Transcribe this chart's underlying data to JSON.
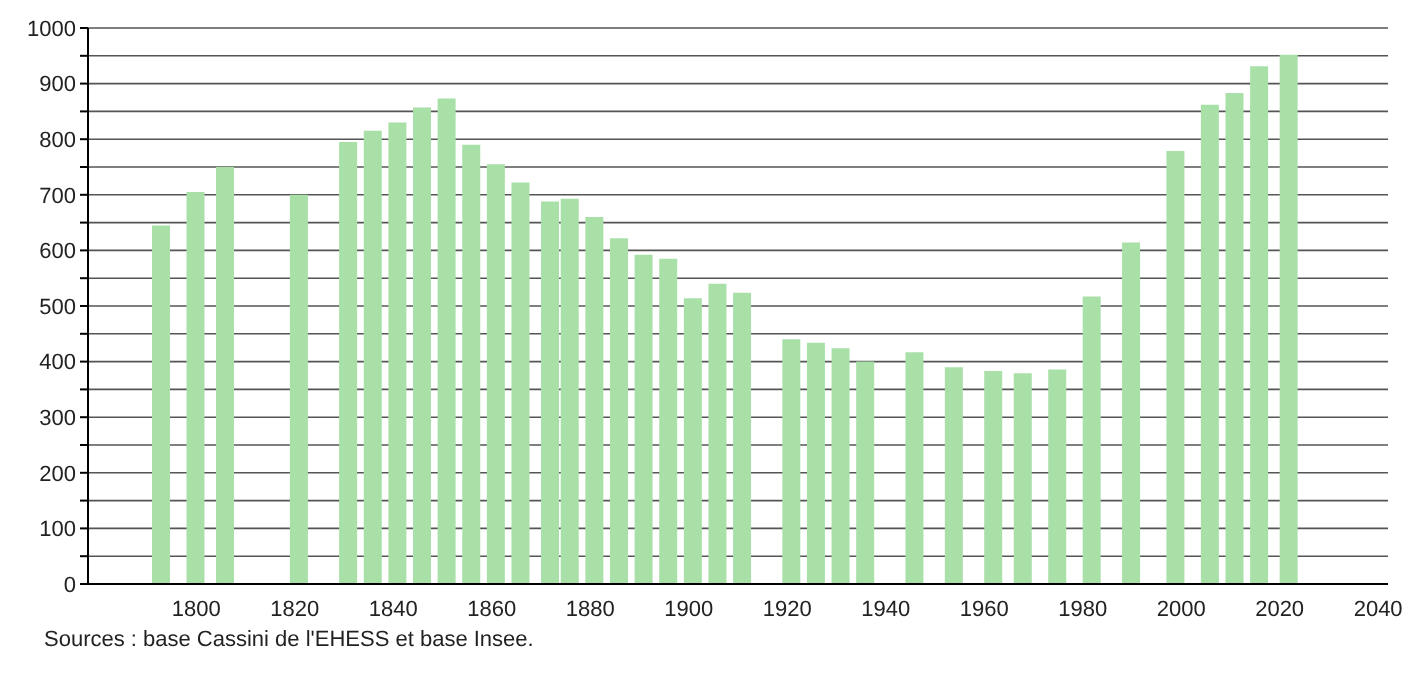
{
  "chart_data": {
    "type": "bar",
    "x": [
      1793,
      1800,
      1806,
      1821,
      1831,
      1836,
      1841,
      1846,
      1851,
      1856,
      1861,
      1866,
      1872,
      1876,
      1881,
      1886,
      1891,
      1896,
      1901,
      1906,
      1911,
      1921,
      1926,
      1931,
      1936,
      1946,
      1954,
      1962,
      1968,
      1975,
      1982,
      1990,
      1999,
      2006,
      2011,
      2016,
      2022
    ],
    "values": [
      645,
      705,
      750,
      700,
      795,
      815,
      830,
      857,
      873,
      790,
      755,
      722,
      688,
      693,
      660,
      622,
      592,
      585,
      514,
      540,
      524,
      440,
      434,
      424,
      400,
      417,
      390,
      383,
      379,
      386,
      517,
      614,
      779,
      862,
      883,
      931,
      952
    ],
    "color": "#a8e0a8",
    "xlim": [
      1778,
      2042
    ],
    "xticks": [
      1800,
      1820,
      1840,
      1860,
      1880,
      1900,
      1920,
      1940,
      1960,
      1980,
      2000,
      2020,
      2040
    ],
    "ylim": [
      0,
      1000
    ],
    "yticks": [
      0,
      {
        "value": 50,
        "label": null
      },
      100,
      {
        "value": 150,
        "label": null
      },
      200,
      {
        "value": 250,
        "label": null
      },
      300,
      {
        "value": 350,
        "label": null
      },
      400,
      {
        "value": 450,
        "label": null
      },
      500,
      {
        "value": 550,
        "label": null
      },
      600,
      {
        "value": 650,
        "label": null
      },
      700,
      {
        "value": 750,
        "label": null
      },
      800,
      {
        "value": 850,
        "label": null
      },
      900,
      {
        "value": 950,
        "label": null
      },
      1000
    ],
    "grid": "y",
    "annotations": [
      "Sources : base Cassini de l'EHESS et base Insee."
    ]
  }
}
